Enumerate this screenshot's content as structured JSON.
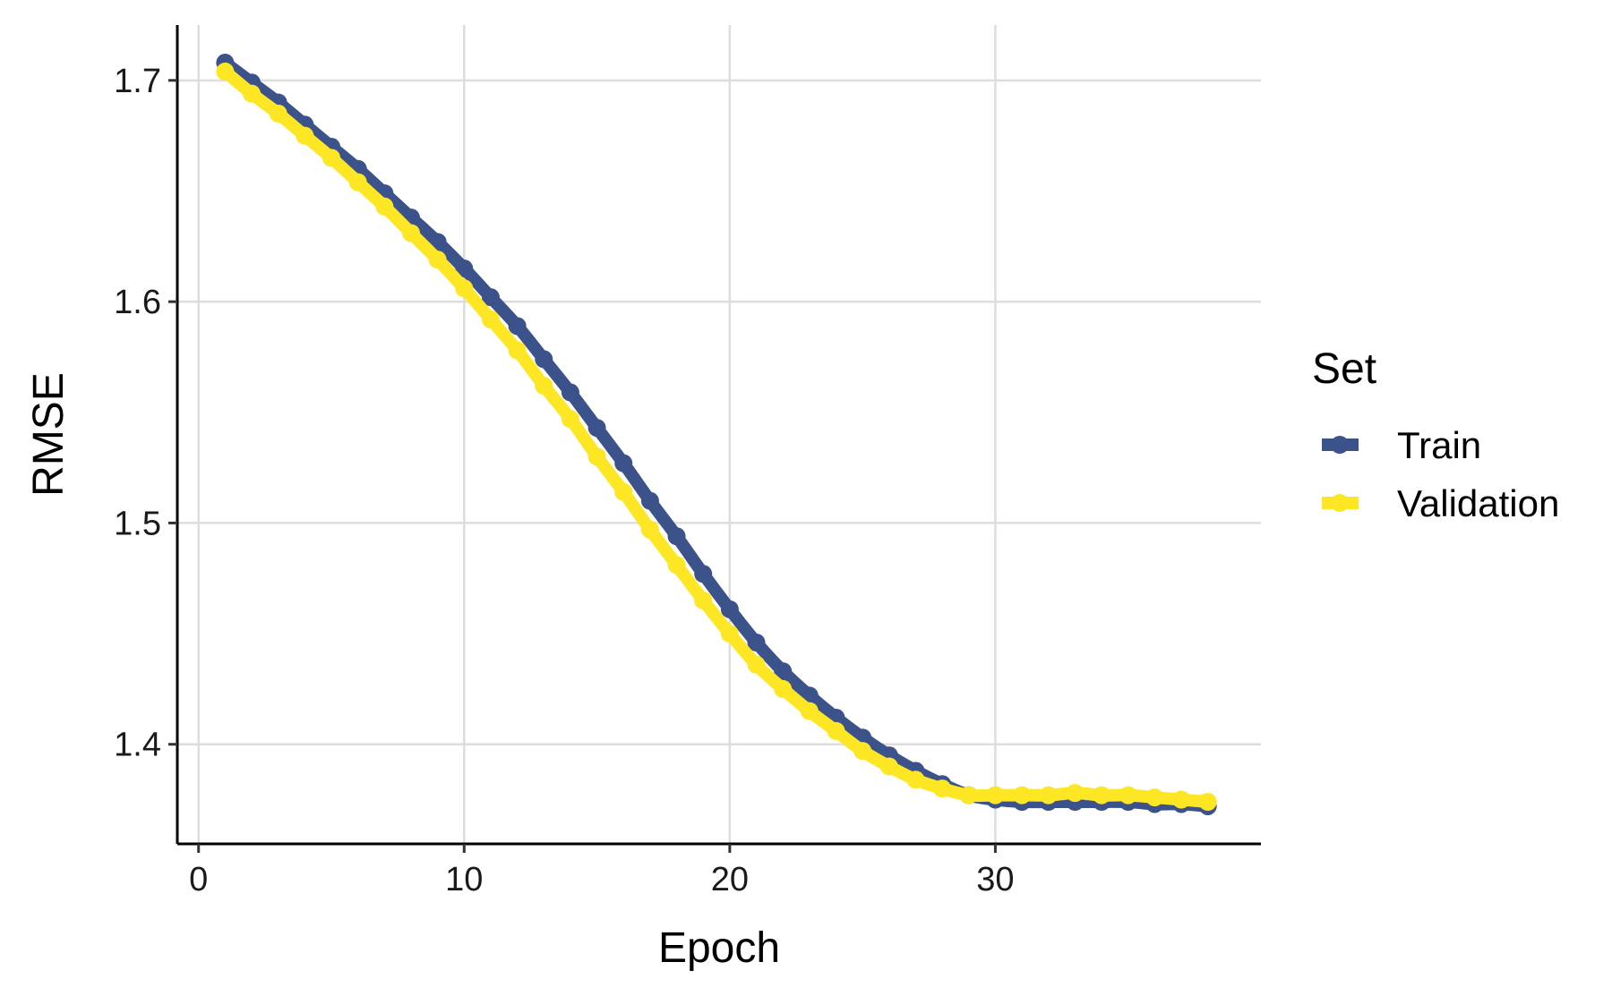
{
  "chart_data": {
    "type": "line",
    "xlabel": "Epoch",
    "ylabel": "RMSE",
    "xlim": [
      -0.8,
      40
    ],
    "ylim": [
      1.355,
      1.725
    ],
    "x_ticks": [
      0,
      10,
      20,
      30
    ],
    "y_ticks": [
      1.4,
      1.5,
      1.6,
      1.7
    ],
    "x_tick_labels": [
      "0",
      "10",
      "20",
      "30"
    ],
    "y_tick_labels": [
      "1.4",
      "1.5",
      "1.6",
      "1.7"
    ],
    "grid": true,
    "legend": {
      "title": "Set",
      "position": "right"
    },
    "x": [
      1,
      2,
      3,
      4,
      5,
      6,
      7,
      8,
      9,
      10,
      11,
      12,
      13,
      14,
      15,
      16,
      17,
      18,
      19,
      20,
      21,
      22,
      23,
      24,
      25,
      26,
      27,
      28,
      29,
      30,
      31,
      32,
      33,
      34,
      35,
      36,
      37,
      38
    ],
    "series": [
      {
        "name": "Train",
        "color": "#3b528b",
        "values": [
          1.708,
          1.699,
          1.69,
          1.68,
          1.67,
          1.66,
          1.649,
          1.638,
          1.627,
          1.615,
          1.602,
          1.589,
          1.574,
          1.559,
          1.543,
          1.527,
          1.51,
          1.494,
          1.477,
          1.461,
          1.446,
          1.433,
          1.422,
          1.412,
          1.403,
          1.395,
          1.388,
          1.382,
          1.377,
          1.375,
          1.374,
          1.374,
          1.374,
          1.374,
          1.374,
          1.373,
          1.373,
          1.372
        ]
      },
      {
        "name": "Validation",
        "color": "#fde725",
        "values": [
          1.704,
          1.694,
          1.685,
          1.675,
          1.665,
          1.654,
          1.643,
          1.631,
          1.619,
          1.606,
          1.592,
          1.578,
          1.562,
          1.547,
          1.53,
          1.514,
          1.497,
          1.481,
          1.465,
          1.45,
          1.436,
          1.425,
          1.415,
          1.406,
          1.397,
          1.39,
          1.384,
          1.38,
          1.377,
          1.377,
          1.377,
          1.377,
          1.378,
          1.377,
          1.377,
          1.376,
          1.375,
          1.374
        ]
      }
    ]
  }
}
